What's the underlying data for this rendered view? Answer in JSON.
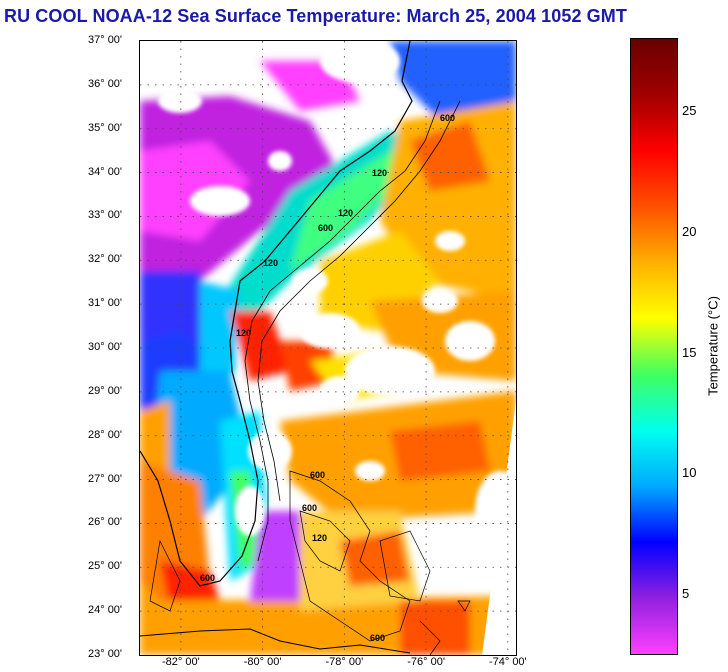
{
  "title": "RU COOL  NOAA-12  Sea Surface Temperature:  March 25, 2004 1052 GMT",
  "map": {
    "lat_labels": [
      "37° 00'",
      "36° 00'",
      "35° 00'",
      "34° 00'",
      "33° 00'",
      "32° 00'",
      "31° 00'",
      "30° 00'",
      "29° 00'",
      "28° 00'",
      "27° 00'",
      "26° 00'",
      "25° 00'",
      "24° 00'",
      "23° 00'"
    ],
    "lon_labels": [
      "-82° 00'",
      "-80° 00'",
      "-78° 00'",
      "-76° 00'",
      "-74° 00'"
    ],
    "lat_range": [
      23,
      37
    ],
    "lon_range": [
      -83.0,
      -73.8
    ],
    "contour_labels": [
      "600",
      "120",
      "120",
      "600",
      "120",
      "120",
      "600",
      "600",
      "120",
      "600",
      "600"
    ]
  },
  "colorbar": {
    "title": "Temperature (°C)",
    "tick_labels": [
      "25",
      "20",
      "15",
      "10",
      "5"
    ],
    "tick_values": [
      25,
      20,
      15,
      10,
      5
    ],
    "range": [
      2.5,
      28
    ],
    "colors": [
      "#ff40ff",
      "#9020e0",
      "#0000ff",
      "#00aaff",
      "#00ffee",
      "#40ff60",
      "#ffff00",
      "#ffb000",
      "#ff5000",
      "#ff0000",
      "#a00000",
      "#6a0000"
    ]
  }
}
